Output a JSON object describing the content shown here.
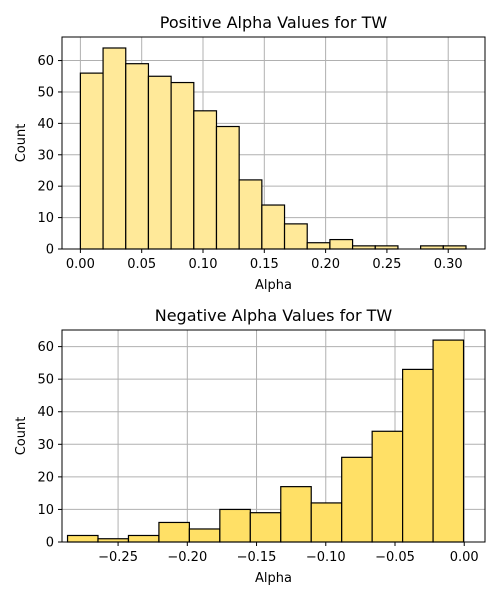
{
  "chart_data": [
    {
      "type": "bar",
      "title": "Positive Alpha Values for TW",
      "xlabel": "Alpha",
      "ylabel": "Count",
      "color": "#ffe999",
      "edge_color": "#000000",
      "grid": true,
      "xlim": [
        -0.015,
        0.33
      ],
      "ylim": [
        0,
        67.5
      ],
      "xticks": [
        0.0,
        0.05,
        0.1,
        0.15,
        0.2,
        0.25,
        0.3
      ],
      "xtick_labels": [
        "0.00",
        "0.05",
        "0.10",
        "0.15",
        "0.20",
        "0.25",
        "0.30"
      ],
      "yticks": [
        0,
        10,
        20,
        30,
        40,
        50,
        60
      ],
      "ytick_labels": [
        "0",
        "10",
        "20",
        "30",
        "40",
        "50",
        "60"
      ],
      "bins": [
        {
          "x0": 0.0,
          "x1": 0.0185,
          "count": 56
        },
        {
          "x0": 0.0185,
          "x1": 0.037,
          "count": 64
        },
        {
          "x0": 0.037,
          "x1": 0.0555,
          "count": 59
        },
        {
          "x0": 0.0555,
          "x1": 0.074,
          "count": 55
        },
        {
          "x0": 0.074,
          "x1": 0.0925,
          "count": 53
        },
        {
          "x0": 0.0925,
          "x1": 0.111,
          "count": 44
        },
        {
          "x0": 0.111,
          "x1": 0.1295,
          "count": 39
        },
        {
          "x0": 0.1295,
          "x1": 0.148,
          "count": 22
        },
        {
          "x0": 0.148,
          "x1": 0.1665,
          "count": 14
        },
        {
          "x0": 0.1665,
          "x1": 0.185,
          "count": 8
        },
        {
          "x0": 0.185,
          "x1": 0.2035,
          "count": 2
        },
        {
          "x0": 0.2035,
          "x1": 0.222,
          "count": 3
        },
        {
          "x0": 0.222,
          "x1": 0.2405,
          "count": 1
        },
        {
          "x0": 0.2405,
          "x1": 0.259,
          "count": 1
        },
        {
          "x0": 0.259,
          "x1": 0.2775,
          "count": 0
        },
        {
          "x0": 0.2775,
          "x1": 0.296,
          "count": 1
        },
        {
          "x0": 0.296,
          "x1": 0.3145,
          "count": 1
        }
      ]
    },
    {
      "type": "bar",
      "title": "Negative Alpha Values for TW",
      "xlabel": "Alpha",
      "ylabel": "Count",
      "color": "#ffe066",
      "edge_color": "#000000",
      "grid": true,
      "xlim": [
        -0.2905,
        0.015
      ],
      "ylim": [
        0,
        65.1
      ],
      "xticks": [
        -0.25,
        -0.2,
        -0.15,
        -0.1,
        -0.05,
        0.0
      ],
      "xtick_labels": [
        "−0.25",
        "−0.20",
        "−0.15",
        "−0.10",
        "−0.05",
        "0.00"
      ],
      "yticks": [
        0,
        10,
        20,
        30,
        40,
        50,
        60
      ],
      "ytick_labels": [
        "0",
        "10",
        "20",
        "30",
        "40",
        "50",
        "60"
      ],
      "bins": [
        {
          "x0": -0.2865,
          "x1": -0.2645,
          "count": 2
        },
        {
          "x0": -0.2645,
          "x1": -0.2425,
          "count": 1
        },
        {
          "x0": -0.2425,
          "x1": -0.2205,
          "count": 2
        },
        {
          "x0": -0.2205,
          "x1": -0.1985,
          "count": 6
        },
        {
          "x0": -0.1985,
          "x1": -0.1765,
          "count": 4
        },
        {
          "x0": -0.1765,
          "x1": -0.1545,
          "count": 10
        },
        {
          "x0": -0.1545,
          "x1": -0.1325,
          "count": 9
        },
        {
          "x0": -0.1325,
          "x1": -0.1105,
          "count": 17
        },
        {
          "x0": -0.1105,
          "x1": -0.0885,
          "count": 12
        },
        {
          "x0": -0.0885,
          "x1": -0.0665,
          "count": 26
        },
        {
          "x0": -0.0665,
          "x1": -0.0445,
          "count": 34
        },
        {
          "x0": -0.0445,
          "x1": -0.0225,
          "count": 53
        },
        {
          "x0": -0.0225,
          "x1": -0.0005,
          "count": 62
        }
      ]
    }
  ]
}
